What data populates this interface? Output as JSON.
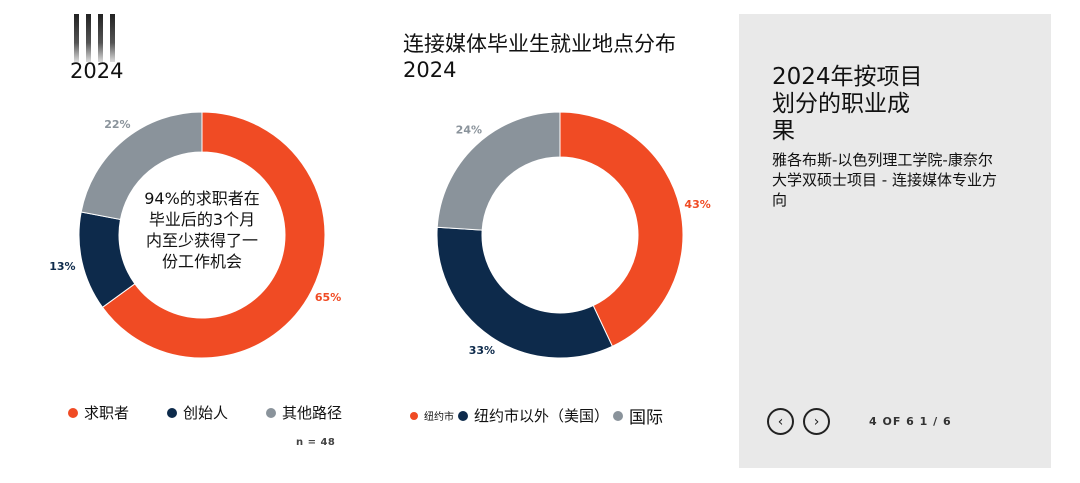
{
  "colors": {
    "orange": "#f04b24",
    "navy": "#0d2a4b",
    "gray": "#8a939b",
    "panel_bg": "#e9e9e9"
  },
  "chart_data": [
    {
      "type": "pie",
      "title": "2024",
      "center_text": "94%的求职者在毕业后的3个月内至少获得了一份工作机会",
      "categories": [
        "求职者",
        "创始人",
        "其他路径"
      ],
      "values": [
        65,
        13,
        22
      ],
      "data_labels": [
        "65%",
        "13%",
        "22%"
      ],
      "legend": [
        "求职者",
        "创始人",
        "其他路径"
      ],
      "legend_position": "bottom",
      "note": "n = 48"
    },
    {
      "type": "pie",
      "title": "连接媒体毕业生就业地点分布\n2024",
      "categories": [
        "纽约市",
        "纽约市以外（美国）",
        "国际"
      ],
      "values": [
        43,
        33,
        24
      ],
      "data_labels": [
        "43%",
        "33%",
        "24%"
      ],
      "legend": [
        "纽约市",
        "纽约市以外（美国）",
        "国际"
      ],
      "legend_position": "bottom"
    }
  ],
  "side_panel": {
    "title": "2024年按项目\n划分的职业成\n果",
    "subtitle": "雅各布斯-以色列理工学院-康奈尔大学双硕士项目 - 连接媒体专业方向",
    "prev_icon": "‹",
    "next_icon": "›",
    "page_indicator": "4 OF 6 1 / 6"
  }
}
